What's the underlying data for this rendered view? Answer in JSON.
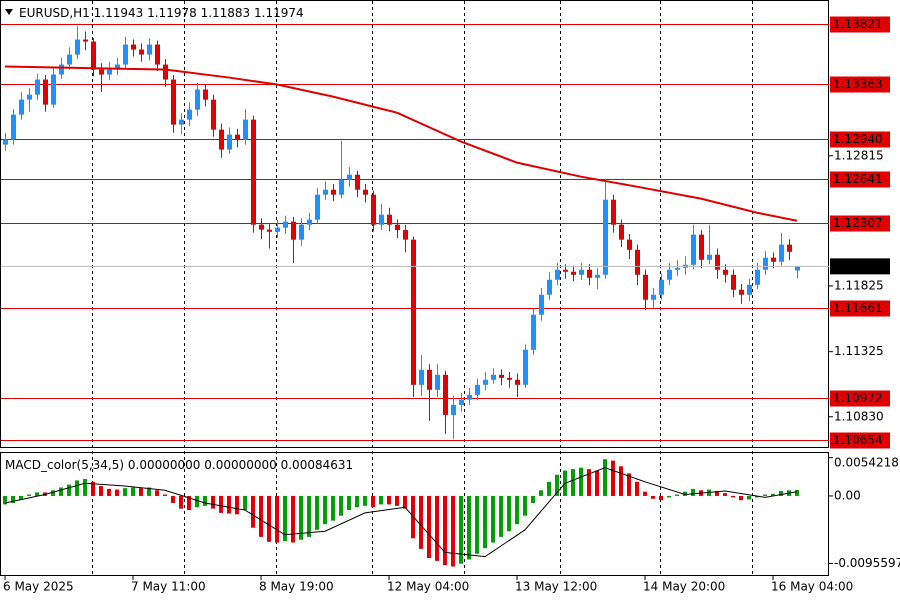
{
  "chart_data": [
    {
      "type": "candlestick",
      "title": "EURUSD,H1",
      "up_color": "#1e90ff",
      "down_color": "#e00000",
      "open": [
        1.129,
        1.12938,
        1.13128,
        1.13242,
        1.1328,
        1.13395,
        1.13204,
        1.13433,
        1.13509,
        1.13585,
        1.13699,
        1.13684,
        1.13471,
        1.13433,
        1.13471,
        1.13509,
        1.13661,
        1.13623,
        1.13585,
        1.13661,
        1.13509,
        1.13395,
        1.13052,
        1.1309,
        1.13166,
        1.13319,
        1.13242,
        1.13014,
        1.12862,
        1.12976,
        1.12938,
        1.1309,
        1.12291,
        1.12253,
        1.12237,
        1.12268,
        1.12314,
        1.12177,
        1.12291,
        1.12329,
        1.12519,
        1.12557,
        1.12519,
        1.12633,
        1.12671,
        1.12557,
        1.12519,
        1.12291,
        1.12367,
        1.12291,
        1.1225,
        1.12177,
        1.11073,
        1.11187,
        1.11035,
        1.11149,
        1.10844,
        1.1092,
        1.1096,
        1.10997,
        1.11073,
        1.11111,
        1.11149,
        1.11126,
        1.11111,
        1.11073,
        1.11339,
        1.11606,
        1.11758,
        1.11872,
        1.11948,
        1.11933,
        1.1191,
        1.11948,
        1.11887,
        1.1191,
        1.12481,
        1.12291,
        1.12177,
        1.121,
        1.1191,
        1.1172,
        1.11758,
        1.11872,
        1.11948,
        1.11963,
        1.11986,
        1.12215,
        1.12024,
        1.12062,
        1.11948,
        1.1191,
        1.11796,
        1.11758,
        1.11834,
        1.11948,
        1.1204,
        1.12009,
        1.12139,
        1.11943
      ],
      "high": [
        1.1299,
        1.1317,
        1.133,
        1.1333,
        1.1344,
        1.1343,
        1.1348,
        1.1356,
        1.1364,
        1.138,
        1.1376,
        1.1371,
        1.1352,
        1.1353,
        1.1356,
        1.1372,
        1.137,
        1.1367,
        1.1371,
        1.1369,
        1.1355,
        1.1343,
        1.1314,
        1.1322,
        1.1337,
        1.1336,
        1.1328,
        1.1306,
        1.1303,
        1.1302,
        1.1317,
        1.1312,
        1.1234,
        1.123,
        1.1233,
        1.1236,
        1.1235,
        1.1234,
        1.1238,
        1.1257,
        1.1262,
        1.126,
        1.1293,
        1.1273,
        1.127,
        1.126,
        1.1255,
        1.1245,
        1.1242,
        1.1233,
        1.1229,
        1.122,
        1.113,
        1.1123,
        1.1123,
        1.1118,
        1.1099,
        1.1101,
        1.1105,
        1.1112,
        1.1117,
        1.112,
        1.1119,
        1.1117,
        1.1116,
        1.1138,
        1.1165,
        1.1181,
        1.1193,
        1.12,
        1.1199,
        1.1198,
        1.12,
        1.1199,
        1.1196,
        1.1264,
        1.1252,
        1.1233,
        1.1222,
        1.1214,
        1.1195,
        1.1181,
        1.1192,
        1.12,
        1.1202,
        1.1205,
        1.1229,
        1.1225,
        1.1229,
        1.1211,
        1.1199,
        1.1195,
        1.1184,
        1.1188,
        1.12,
        1.1209,
        1.1208,
        1.1223,
        1.1218,
        1.11978
      ],
      "low": [
        1.1285,
        1.129,
        1.1309,
        1.1315,
        1.1324,
        1.1315,
        1.1318,
        1.134,
        1.1347,
        1.1355,
        1.1362,
        1.1342,
        1.133,
        1.1339,
        1.1343,
        1.1348,
        1.1357,
        1.1353,
        1.1354,
        1.1346,
        1.1334,
        1.1299,
        1.1298,
        1.1304,
        1.1312,
        1.1319,
        1.1296,
        1.128,
        1.1283,
        1.1288,
        1.129,
        1.1223,
        1.1218,
        1.1211,
        1.1219,
        1.1222,
        1.12,
        1.1213,
        1.1225,
        1.123,
        1.1248,
        1.1247,
        1.1249,
        1.1258,
        1.125,
        1.1246,
        1.1224,
        1.1225,
        1.1224,
        1.1219,
        1.1208,
        1.1098,
        1.1099,
        1.108,
        1.1098,
        1.107,
        1.1066,
        1.1087,
        1.1092,
        1.1096,
        1.1103,
        1.1108,
        1.1107,
        1.1105,
        1.1098,
        1.1105,
        1.113,
        1.1156,
        1.1172,
        1.1183,
        1.1188,
        1.1186,
        1.1187,
        1.1183,
        1.118,
        1.1188,
        1.1223,
        1.1212,
        1.1203,
        1.1183,
        1.1164,
        1.1166,
        1.1172,
        1.1183,
        1.119,
        1.1191,
        1.1195,
        1.1196,
        1.1199,
        1.1188,
        1.1185,
        1.1174,
        1.1169,
        1.1171,
        1.118,
        1.1191,
        1.1196,
        1.1198,
        1.1202,
        1.11883
      ],
      "close": [
        1.12938,
        1.13128,
        1.13242,
        1.1328,
        1.13395,
        1.13204,
        1.13433,
        1.13509,
        1.13585,
        1.13699,
        1.13684,
        1.13471,
        1.13433,
        1.13471,
        1.13509,
        1.13661,
        1.13623,
        1.13585,
        1.13661,
        1.13509,
        1.13395,
        1.13052,
        1.1309,
        1.13166,
        1.13319,
        1.13242,
        1.13014,
        1.12862,
        1.12976,
        1.12938,
        1.1309,
        1.12291,
        1.12253,
        1.12237,
        1.12268,
        1.12314,
        1.12177,
        1.12291,
        1.12329,
        1.12519,
        1.12557,
        1.12519,
        1.12633,
        1.12671,
        1.12557,
        1.12519,
        1.12291,
        1.12367,
        1.12291,
        1.1225,
        1.12177,
        1.11073,
        1.11187,
        1.11035,
        1.11149,
        1.10844,
        1.1092,
        1.1096,
        1.10997,
        1.11073,
        1.11111,
        1.11149,
        1.11126,
        1.11111,
        1.11073,
        1.11339,
        1.11606,
        1.11758,
        1.11872,
        1.11948,
        1.11933,
        1.1191,
        1.11948,
        1.11887,
        1.1191,
        1.12481,
        1.12291,
        1.12177,
        1.121,
        1.1191,
        1.1172,
        1.11758,
        1.11872,
        1.11948,
        1.11963,
        1.11986,
        1.12215,
        1.12024,
        1.12062,
        1.11948,
        1.1191,
        1.11796,
        1.11758,
        1.11834,
        1.11948,
        1.1204,
        1.12009,
        1.12139,
        1.12085,
        1.11974
      ],
      "ma": {
        "color": "#e00000",
        "x": [
          0,
          20,
          28,
          34,
          41,
          49,
          57,
          64,
          72,
          79,
          87,
          94,
          99
        ],
        "values": [
          1.13494,
          1.13471,
          1.1341,
          1.13357,
          1.13265,
          1.13143,
          1.12923,
          1.12763,
          1.12656,
          1.1258,
          1.12489,
          1.12382,
          1.12321
        ]
      },
      "levels": [
        1.13821,
        1.13363,
        {
          "value": 1.1294,
          "label": "1.12940"
        },
        1.12641,
        1.12307,
        1.11661,
        1.10972,
        1.10654
      ],
      "level_color": "#e00000",
      "ylim": [
        1.106,
        1.14
      ],
      "yticks": [
        1.12815,
        1.11825,
        1.11325,
        {
          "value": 1.1083,
          "label": "1.10830"
        }
      ],
      "xticks": [
        {
          "value": 0,
          "label": "6 May 2025"
        },
        {
          "value": 16,
          "label": "7 May 11:00"
        },
        {
          "value": 32,
          "label": "8 May 19:00"
        },
        {
          "value": 48,
          "label": "12 May 04:00"
        },
        {
          "value": 64,
          "label": "13 May 12:00"
        },
        {
          "value": 80,
          "label": "14 May 20:00"
        },
        {
          "value": 96,
          "label": "16 May 04:00"
        }
      ]
    },
    {
      "type": "macd",
      "title": "MACD_color(5,34,5)",
      "readout": [
        "0.00000000",
        "0.00000000",
        "0.00084631"
      ],
      "up_color": "#00a000",
      "down_color": "#e00000",
      "signal_color": "#000000",
      "values": [
        -0.0012,
        -0.001,
        -0.0005,
        0.0002,
        0.0005,
        0.0005,
        0.0008,
        0.0012,
        0.0016,
        0.0022,
        0.0024,
        0.002,
        0.0014,
        0.001,
        0.0009,
        0.0011,
        0.0012,
        0.0011,
        0.0012,
        0.0008,
        0.0002,
        -0.001,
        -0.0018,
        -0.002,
        -0.0016,
        -0.0014,
        -0.0018,
        -0.0024,
        -0.0025,
        -0.0026,
        -0.002,
        -0.0045,
        -0.0058,
        -0.0065,
        -0.0066,
        -0.0064,
        -0.0066,
        -0.0062,
        -0.0058,
        -0.0048,
        -0.004,
        -0.0035,
        -0.0028,
        -0.002,
        -0.0016,
        -0.0014,
        -0.0016,
        -0.0012,
        -0.0012,
        -0.0014,
        -0.0018,
        -0.006,
        -0.0075,
        -0.0088,
        -0.0092,
        -0.0098,
        -0.01,
        -0.0096,
        -0.009,
        -0.0082,
        -0.0074,
        -0.0066,
        -0.0058,
        -0.005,
        -0.004,
        -0.0028,
        -0.001,
        0.0008,
        0.002,
        0.003,
        0.0036,
        0.0038,
        0.004,
        0.0038,
        0.0036,
        0.0052,
        0.005,
        0.0042,
        0.0032,
        0.002,
        0.0006,
        -0.0004,
        -0.0006,
        -0.0002,
        0.0002,
        0.0006,
        0.001,
        0.0008,
        0.0009,
        0.0007,
        0.0004,
        -0.0002,
        -0.0006,
        -0.0005,
        -0.0002,
        0.0002,
        0.0003,
        0.0007,
        0.0008,
        0.00084631
      ],
      "signal": {
        "x": [
          0,
          5,
          10,
          15,
          20,
          25,
          30,
          35,
          40,
          45,
          50,
          55,
          60,
          65,
          70,
          75,
          80,
          85,
          90,
          95,
          99
        ],
        "values": [
          -0.001,
          0.0002,
          0.0018,
          0.0014,
          0.0008,
          -0.001,
          -0.002,
          -0.0055,
          -0.005,
          -0.0024,
          -0.0016,
          -0.008,
          -0.0086,
          -0.0048,
          0.0018,
          0.004,
          0.002,
          0.0002,
          0.0007,
          -0.0002,
          0.0006
        ]
      },
      "ylim": [
        -0.0112,
        0.0058
      ],
      "yticks": [
        0.0054218,
        {
          "value": 0,
          "label": "0.00"
        },
        -0.0095597
      ]
    }
  ]
}
